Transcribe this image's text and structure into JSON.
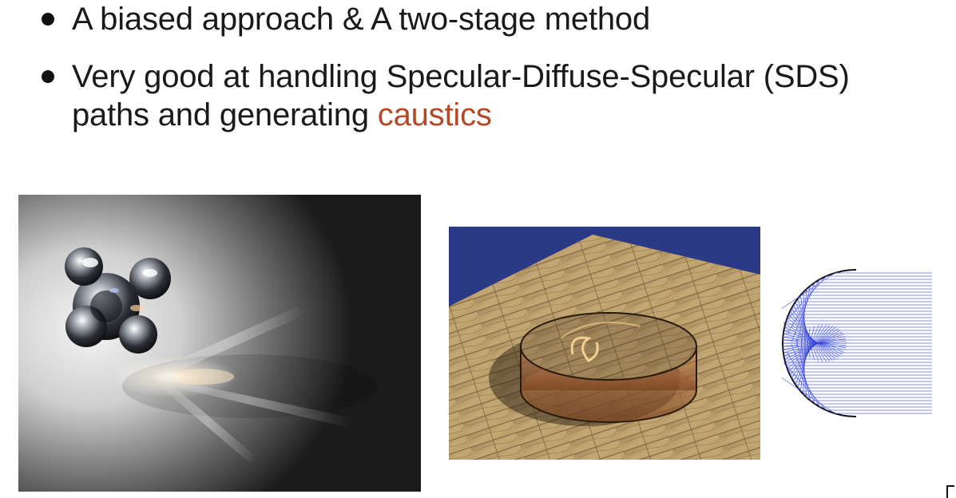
{
  "bullets": [
    {
      "text": "A biased approach & A two-stage method"
    },
    {
      "text_line1": "Very good at handling Specular-Diffuse-Specular (SDS)",
      "text_line2_prefix": "paths and generating ",
      "text_line2_accent": "caustics"
    }
  ],
  "colors": {
    "accent": "#b24a2a",
    "text": "#1a1a1a"
  },
  "figures": {
    "left": {
      "icon": "caustic-render-glass-object"
    },
    "middle": {
      "icon": "caustic-render-ring-on-wood"
    },
    "right": {
      "icon": "caustic-ray-diagram"
    }
  }
}
